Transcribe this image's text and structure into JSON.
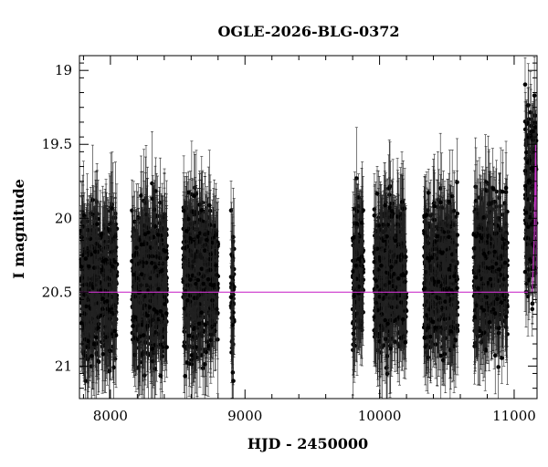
{
  "chart_data": {
    "type": "scatter",
    "title": "OGLE-2026-BLG-0372",
    "xlabel": "HJD - 2450000",
    "ylabel": "I magnitude",
    "xlim": [
      7770,
      11170
    ],
    "ylim": [
      21.22,
      18.9
    ],
    "y_inverted": true,
    "x_ticks": [
      8000,
      9000,
      10000,
      11000
    ],
    "y_ticks": [
      19,
      19.5,
      20,
      20.5,
      21
    ],
    "x_tick_labels": [
      "8000",
      "9000",
      "10000",
      "11000"
    ],
    "y_tick_labels": [
      "19",
      "19.5",
      "20",
      "20.5",
      "21"
    ],
    "grid": false,
    "series": [
      {
        "role": "observations",
        "marker": "filled circle with error bars",
        "color": "#000000",
        "seasons": [
          {
            "start": 7780,
            "end": 8050,
            "mag_center": 20.45,
            "mag_spread": 0.55,
            "error_typ": 0.25
          },
          {
            "start": 8160,
            "end": 8420,
            "mag_center": 20.45,
            "mag_spread": 0.55,
            "error_typ": 0.25
          },
          {
            "start": 8540,
            "end": 8800,
            "mag_center": 20.4,
            "mag_spread": 0.55,
            "error_typ": 0.25
          },
          {
            "start": 8895,
            "end": 8920,
            "mag_center": 20.5,
            "mag_spread": 0.5,
            "error_typ": 0.25
          },
          {
            "start": 9800,
            "end": 9880,
            "mag_center": 20.35,
            "mag_spread": 0.5,
            "error_typ": 0.25
          },
          {
            "start": 9960,
            "end": 10200,
            "mag_center": 20.4,
            "mag_spread": 0.55,
            "error_typ": 0.25
          },
          {
            "start": 10330,
            "end": 10580,
            "mag_center": 20.4,
            "mag_spread": 0.55,
            "error_typ": 0.25
          },
          {
            "start": 10700,
            "end": 10950,
            "mag_center": 20.35,
            "mag_spread": 0.55,
            "error_typ": 0.25
          },
          {
            "start": 11080,
            "end": 11165,
            "mag_center": 19.9,
            "mag_spread": 0.7,
            "error_typ": 0.2
          }
        ]
      },
      {
        "role": "model",
        "color": "#cc33cc",
        "baseline_mag": 20.5,
        "points": [
          {
            "x": 7770,
            "y": 20.5
          },
          {
            "x": 11135,
            "y": 20.5
          },
          {
            "x": 11150,
            "y": 20.1
          },
          {
            "x": 11160,
            "y": 19.5
          },
          {
            "x": 11165,
            "y": 20.1
          },
          {
            "x": 11170,
            "y": 20.5
          }
        ]
      }
    ]
  }
}
